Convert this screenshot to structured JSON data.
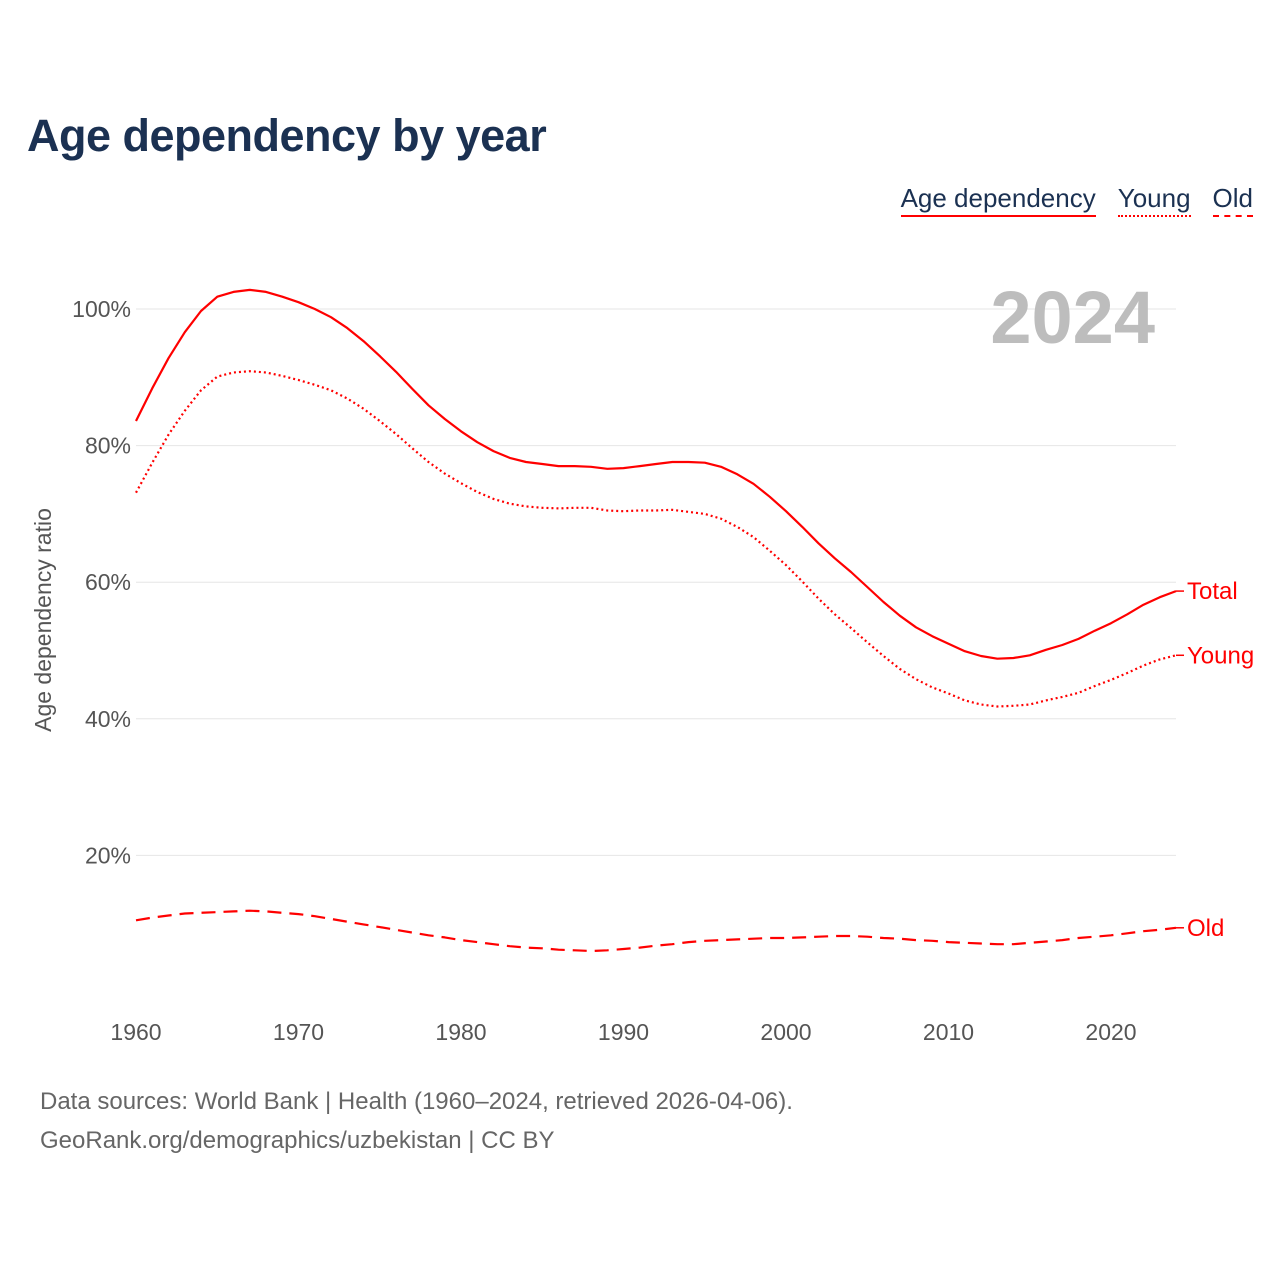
{
  "chart_data": {
    "type": "line",
    "title": "Age dependency by year",
    "ylabel": "Age dependency ratio",
    "xlabel": "",
    "xlim": [
      1960,
      2024
    ],
    "ylim": [
      0,
      107
    ],
    "x_ticks": [
      1960,
      1970,
      1980,
      1990,
      2000,
      2010,
      2020
    ],
    "x_tick_labels": [
      "1960",
      "1970",
      "1980",
      "1990",
      "2000",
      "2010",
      "2020"
    ],
    "y_ticks": [
      20,
      40,
      60,
      80,
      100
    ],
    "y_tick_labels": [
      "20%",
      "40%",
      "60%",
      "80%",
      "100%"
    ],
    "grid": true,
    "legend": {
      "placement": "top-right",
      "items": [
        "Age dependency",
        "Young",
        "Old"
      ]
    },
    "year_label": "2024",
    "color": "#ff0000",
    "x": [
      1960,
      1961,
      1962,
      1963,
      1964,
      1965,
      1966,
      1967,
      1968,
      1969,
      1970,
      1971,
      1972,
      1973,
      1974,
      1975,
      1976,
      1977,
      1978,
      1979,
      1980,
      1981,
      1982,
      1983,
      1984,
      1985,
      1986,
      1987,
      1988,
      1989,
      1990,
      1991,
      1992,
      1993,
      1994,
      1995,
      1996,
      1997,
      1998,
      1999,
      2000,
      2001,
      2002,
      2003,
      2004,
      2005,
      2006,
      2007,
      2008,
      2009,
      2010,
      2011,
      2012,
      2013,
      2014,
      2015,
      2016,
      2017,
      2018,
      2019,
      2020,
      2021,
      2022,
      2023,
      2024
    ],
    "series": [
      {
        "name": "Total",
        "style": "solid",
        "values": [
          83.6,
          88.4,
          92.8,
          96.6,
          99.7,
          101.8,
          102.5,
          102.8,
          102.5,
          101.8,
          101.0,
          100.0,
          98.8,
          97.2,
          95.3,
          93.1,
          90.8,
          88.3,
          85.9,
          83.9,
          82.1,
          80.5,
          79.2,
          78.2,
          77.6,
          77.3,
          77.0,
          77.0,
          76.9,
          76.6,
          76.7,
          77.0,
          77.3,
          77.6,
          77.6,
          77.5,
          76.9,
          75.8,
          74.4,
          72.5,
          70.4,
          68.1,
          65.7,
          63.5,
          61.5,
          59.3,
          57.1,
          55.1,
          53.4,
          52.1,
          51.0,
          49.9,
          49.2,
          48.8,
          48.9,
          49.3,
          50.1,
          50.8,
          51.7,
          52.9,
          54.0,
          55.3,
          56.7,
          57.8,
          58.7
        ]
      },
      {
        "name": "Young",
        "style": "dotted",
        "values": [
          73.1,
          77.5,
          81.6,
          85.1,
          88.1,
          90.1,
          90.7,
          90.9,
          90.7,
          90.2,
          89.6,
          88.9,
          88.1,
          86.9,
          85.4,
          83.6,
          81.7,
          79.6,
          77.6,
          75.9,
          74.5,
          73.2,
          72.2,
          71.5,
          71.1,
          70.9,
          70.8,
          70.9,
          70.9,
          70.5,
          70.4,
          70.5,
          70.5,
          70.6,
          70.3,
          70.0,
          69.3,
          68.1,
          66.6,
          64.6,
          62.5,
          60.1,
          57.6,
          55.3,
          53.3,
          51.2,
          49.2,
          47.3,
          45.8,
          44.6,
          43.7,
          42.7,
          42.1,
          41.8,
          41.9,
          42.1,
          42.7,
          43.2,
          43.8,
          44.8,
          45.7,
          46.7,
          47.8,
          48.7,
          49.3
        ]
      },
      {
        "name": "Old",
        "style": "dashed",
        "values": [
          10.5,
          10.9,
          11.2,
          11.5,
          11.6,
          11.7,
          11.8,
          11.9,
          11.8,
          11.6,
          11.4,
          11.1,
          10.7,
          10.3,
          9.9,
          9.5,
          9.1,
          8.7,
          8.3,
          8.0,
          7.6,
          7.3,
          7.0,
          6.7,
          6.5,
          6.4,
          6.2,
          6.1,
          6.0,
          6.1,
          6.3,
          6.5,
          6.8,
          7.0,
          7.3,
          7.5,
          7.6,
          7.7,
          7.8,
          7.9,
          7.9,
          8.0,
          8.1,
          8.2,
          8.2,
          8.1,
          7.9,
          7.8,
          7.6,
          7.5,
          7.3,
          7.2,
          7.1,
          7.0,
          7.0,
          7.2,
          7.4,
          7.6,
          7.9,
          8.1,
          8.3,
          8.6,
          8.9,
          9.1,
          9.4
        ]
      }
    ]
  },
  "footer": {
    "line1": "Data sources: World Bank | Health (1960–2024, retrieved 2026-04-06).",
    "line2": "GeoRank.org/demographics/uzbekistan | CC BY"
  }
}
